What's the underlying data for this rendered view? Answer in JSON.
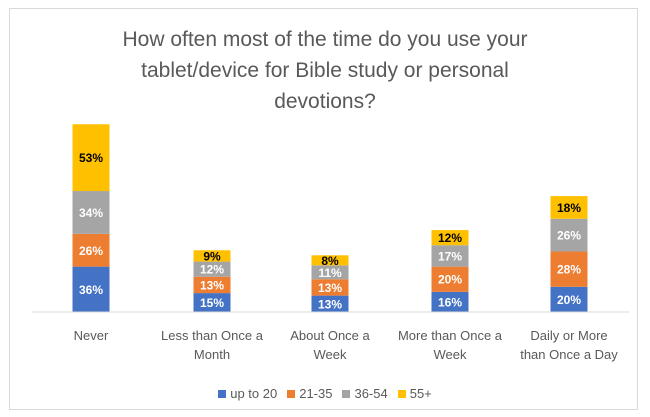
{
  "chart_data": {
    "type": "bar",
    "stacked": true,
    "title_lines": [
      "How often most of the time do you use your",
      "tablet/device for Bible study or personal",
      "devotions?"
    ],
    "categories": [
      [
        "Never"
      ],
      [
        "Less than Once a",
        "Month"
      ],
      [
        "About Once a",
        "Week"
      ],
      [
        "More than Once a",
        "Week"
      ],
      [
        "Daily or More",
        "than Once a Day"
      ]
    ],
    "series": [
      {
        "name": "up to 20",
        "color": "#4472C4",
        "values": [
          36,
          15,
          13,
          16,
          20
        ],
        "labels": [
          "36%",
          "15%",
          "13%",
          "16%",
          "20%"
        ],
        "label_color": "#ffffff"
      },
      {
        "name": "21-35",
        "color": "#ED7D31",
        "values": [
          26,
          13,
          13,
          20,
          28
        ],
        "labels": [
          "26%",
          "13%",
          "13%",
          "20%",
          "28%"
        ],
        "label_color": "#ffffff"
      },
      {
        "name": "36-54",
        "color": "#A5A5A5",
        "values": [
          34,
          12,
          11,
          17,
          26
        ],
        "labels": [
          "34%",
          "12%",
          "11%",
          "17%",
          "26%"
        ],
        "label_color": "#ffffff"
      },
      {
        "name": "55+",
        "color": "#FFC000",
        "values": [
          53,
          9,
          8,
          12,
          18
        ],
        "labels": [
          "53%",
          "9%",
          "8%",
          "12%",
          "18%"
        ],
        "label_color": "#000000"
      }
    ],
    "legend_position": "bottom",
    "grid": false
  }
}
